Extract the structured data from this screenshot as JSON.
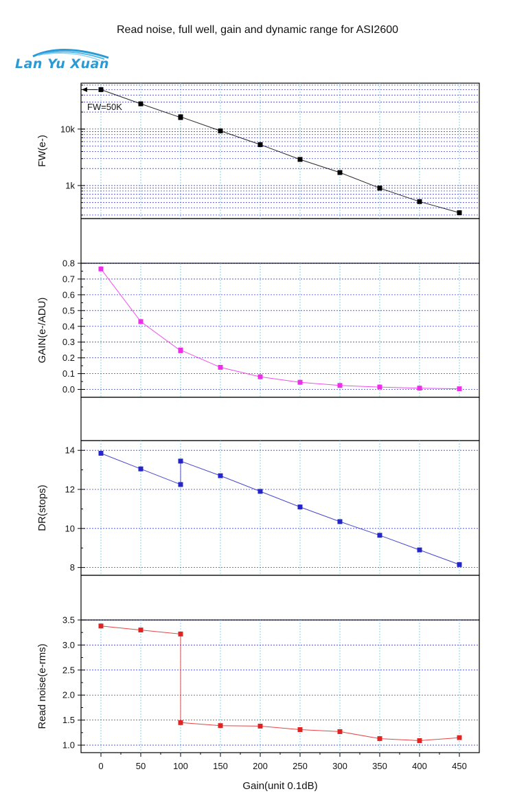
{
  "title": "Read noise, full well, gain and dynamic range for ASI2600",
  "logo": {
    "text": "Lan Yu Xuan",
    "color": "#2a9ad6"
  },
  "chart_data": [
    {
      "type": "line",
      "panel": "fw",
      "ylabel": "FW(e-)",
      "yscale": "log",
      "ylim": [
        260,
        65000
      ],
      "yticks": [
        {
          "v": 1000,
          "label": "1k"
        },
        {
          "v": 10000,
          "label": "10k"
        }
      ],
      "color": "#000000",
      "annotation": "FW=50K",
      "x": [
        0,
        50,
        100,
        100,
        150,
        200,
        250,
        300,
        350,
        400,
        450
      ],
      "y": [
        50000,
        28000,
        16000,
        16500,
        9300,
        5300,
        2900,
        1700,
        900,
        520,
        330
      ]
    },
    {
      "type": "line",
      "panel": "gain",
      "ylabel": "GAIN(e-/ADU)",
      "yscale": "linear",
      "ylim": [
        -0.05,
        0.8
      ],
      "yticks": [
        {
          "v": 0.0,
          "label": "0.0"
        },
        {
          "v": 0.1,
          "label": "0.1"
        },
        {
          "v": 0.2,
          "label": "0.2"
        },
        {
          "v": 0.3,
          "label": "0.3"
        },
        {
          "v": 0.4,
          "label": "0.4"
        },
        {
          "v": 0.5,
          "label": "0.5"
        },
        {
          "v": 0.6,
          "label": "0.6"
        },
        {
          "v": 0.7,
          "label": "0.7"
        },
        {
          "v": 0.8,
          "label": "0.8"
        }
      ],
      "color": "#ee2ee8",
      "x": [
        0,
        50,
        100,
        100,
        150,
        200,
        250,
        300,
        350,
        400,
        450
      ],
      "y": [
        0.764,
        0.43,
        0.245,
        0.25,
        0.14,
        0.08,
        0.045,
        0.025,
        0.015,
        0.008,
        0.004
      ]
    },
    {
      "type": "line",
      "panel": "dr",
      "ylabel": "DR(stops)",
      "yscale": "linear",
      "ylim": [
        7.6,
        14.5
      ],
      "yticks": [
        {
          "v": 8,
          "label": "8"
        },
        {
          "v": 10,
          "label": "10"
        },
        {
          "v": 12,
          "label": "12"
        },
        {
          "v": 14,
          "label": "14"
        }
      ],
      "color": "#2626c8",
      "x": [
        0,
        50,
        100,
        100,
        150,
        200,
        250,
        300,
        350,
        400,
        450
      ],
      "y": [
        13.85,
        13.05,
        12.25,
        13.45,
        12.7,
        11.9,
        11.1,
        10.35,
        9.65,
        8.9,
        8.15
      ]
    },
    {
      "type": "line",
      "panel": "rn",
      "ylabel": "Read noise(e-rms)",
      "yscale": "linear",
      "ylim": [
        0.85,
        3.5
      ],
      "yticks": [
        {
          "v": 1.0,
          "label": "1.0"
        },
        {
          "v": 1.5,
          "label": "1.5"
        },
        {
          "v": 2.0,
          "label": "2.0"
        },
        {
          "v": 2.5,
          "label": "2.5"
        },
        {
          "v": 3.0,
          "label": "3.0"
        },
        {
          "v": 3.5,
          "label": "3.5"
        }
      ],
      "color": "#e02424",
      "x": [
        0,
        50,
        100,
        100,
        150,
        200,
        250,
        300,
        350,
        400,
        450
      ],
      "y": [
        3.38,
        3.3,
        3.22,
        1.45,
        1.39,
        1.38,
        1.31,
        1.27,
        1.13,
        1.09,
        1.15
      ]
    }
  ],
  "xaxis": {
    "xlabel": "Gain(unit 0.1dB)",
    "xlim": [
      -25,
      475
    ],
    "xticks": [
      0,
      50,
      100,
      150,
      200,
      250,
      300,
      350,
      400,
      450
    ]
  }
}
